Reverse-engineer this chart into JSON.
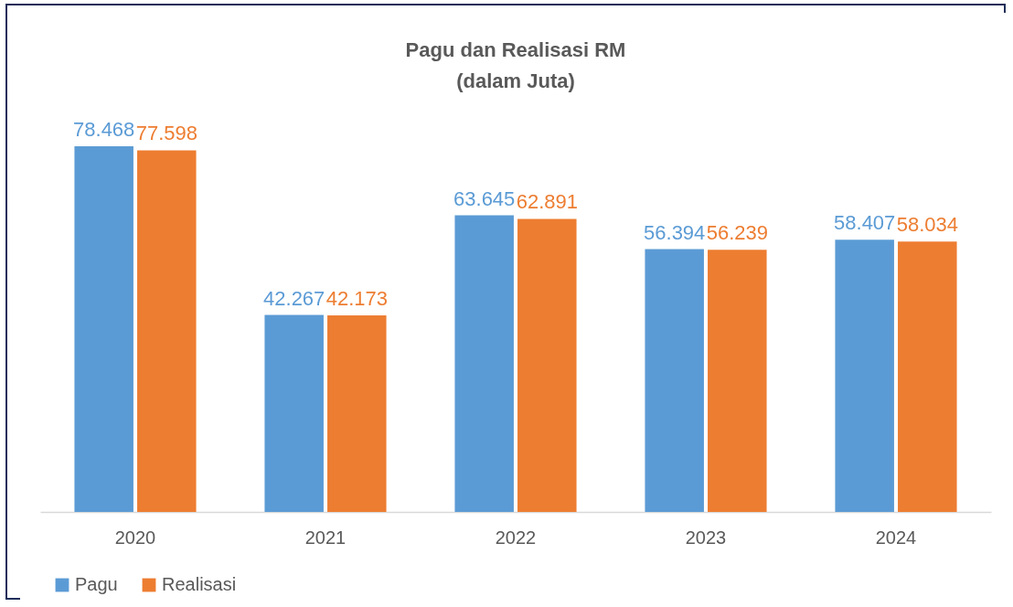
{
  "chart_data": {
    "type": "bar",
    "title": "Pagu dan Realisasi RM\n(dalam Juta)",
    "categories": [
      "2020",
      "2021",
      "2022",
      "2023",
      "2024"
    ],
    "series": [
      {
        "name": "Pagu",
        "color": "#5b9bd5",
        "values": [
          78.468,
          42.267,
          63.645,
          56.394,
          58.407
        ]
      },
      {
        "name": "Realisasi",
        "color": "#ed7d31",
        "values": [
          77.598,
          42.173,
          62.891,
          56.239,
          58.034
        ]
      }
    ],
    "data_labels": true,
    "legend": "bottom",
    "grid": false
  }
}
